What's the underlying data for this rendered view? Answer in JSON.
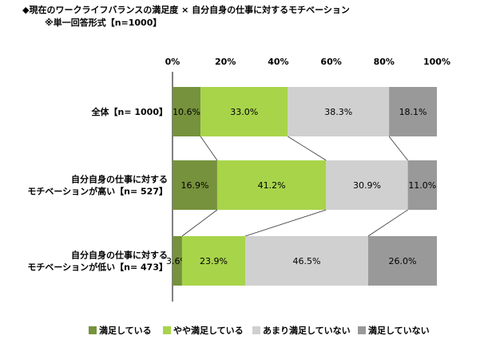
{
  "title": "◆現在のワークライフバランスの満足度 × 自分自身の仕事に対するモチベーション",
  "subtitle": "※単一回答形式【n=1000】",
  "chart_data": {
    "type": "bar",
    "orientation": "horizontal-stacked-100",
    "xlim": [
      0,
      100
    ],
    "ticks": [
      "0%",
      "20%",
      "40%",
      "60%",
      "80%",
      "100%"
    ],
    "categories": [
      [
        "全体【n= 1000】"
      ],
      [
        "自分自身の仕事に対する",
        "モチベーションが高い【n= 527】"
      ],
      [
        "自分自身の仕事に対する",
        "モチベーションが低い【n= 473】"
      ]
    ],
    "series": [
      {
        "name": "満足している",
        "color": "#76923c",
        "values": [
          10.6,
          16.9,
          3.6
        ],
        "labels": [
          "10.6%",
          "16.9%",
          "3.6%"
        ]
      },
      {
        "name": "やや満足している",
        "color": "#a8d44a",
        "values": [
          33.0,
          41.2,
          23.9
        ],
        "labels": [
          "33.0%",
          "41.2%",
          "23.9%"
        ]
      },
      {
        "name": "あまり満足していない",
        "color": "#d0d0d0",
        "values": [
          38.3,
          30.9,
          46.5
        ],
        "labels": [
          "38.3%",
          "30.9%",
          "46.5%"
        ]
      },
      {
        "name": "満足していない",
        "color": "#999999",
        "values": [
          18.1,
          11.0,
          26.0
        ],
        "labels": [
          "18.1%",
          "11.0%",
          "26.0%"
        ]
      }
    ],
    "legend_position": "bottom"
  }
}
